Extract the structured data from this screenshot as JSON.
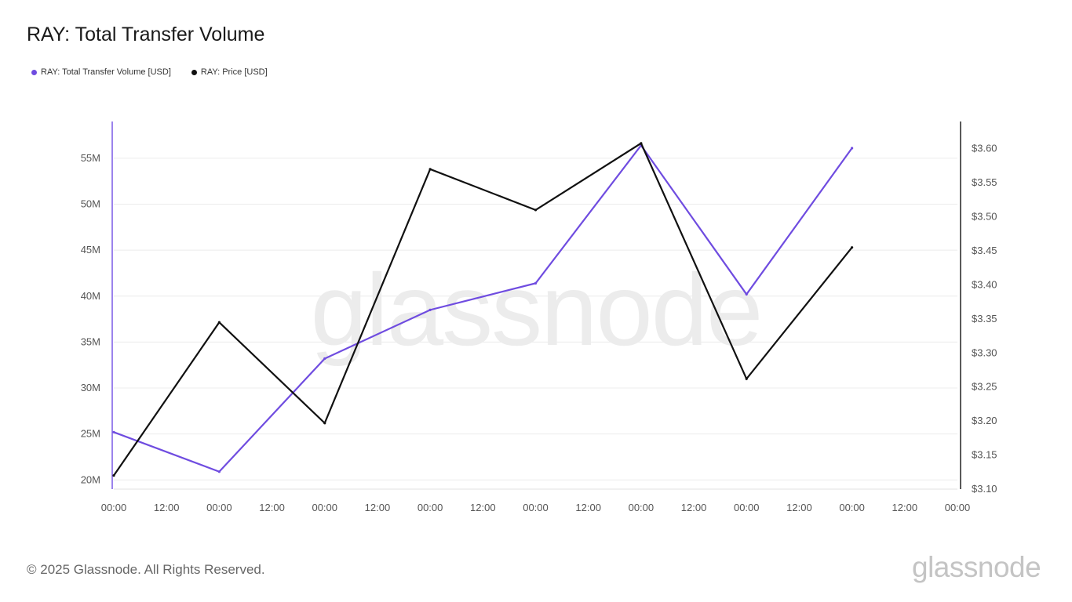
{
  "header": {
    "title": "RAY: Total Transfer Volume"
  },
  "footer": {
    "copyright": "© 2025 Glassnode. All Rights Reserved.",
    "brand": "glassnode"
  },
  "watermark": "glassnode",
  "colors": {
    "volume": "#6f4ce0",
    "price": "#111111",
    "axis_left": "#7a5ae6",
    "grid": "#ececec"
  },
  "chart_data": {
    "type": "line",
    "title": "RAY: Total Transfer Volume",
    "legend_placement": "top-left",
    "grid": true,
    "x_tick_labels": [
      "00:00",
      "12:00",
      "00:00",
      "12:00",
      "00:00",
      "12:00",
      "00:00",
      "12:00",
      "00:00",
      "12:00",
      "00:00",
      "12:00",
      "00:00",
      "12:00",
      "00:00",
      "12:00",
      "00:00"
    ],
    "x_range_half_days": [
      0,
      16
    ],
    "y_left": {
      "ticks": [
        "20M",
        "25M",
        "30M",
        "35M",
        "40M",
        "45M",
        "50M",
        "55M"
      ],
      "tick_values": [
        20,
        25,
        30,
        35,
        40,
        45,
        50,
        55
      ],
      "unit": "M",
      "range": [
        19,
        59
      ]
    },
    "y_right": {
      "ticks": [
        "$3.10",
        "$3.15",
        "$3.20",
        "$3.25",
        "$3.30",
        "$3.35",
        "$3.40",
        "$3.45",
        "$3.50",
        "$3.55",
        "$3.60"
      ],
      "tick_values": [
        3.1,
        3.15,
        3.2,
        3.25,
        3.3,
        3.35,
        3.4,
        3.45,
        3.5,
        3.55,
        3.6
      ],
      "range": [
        3.1,
        3.64
      ]
    },
    "series": [
      {
        "name": "RAY: Total Transfer Volume [USD]",
        "axis": "left",
        "x": [
          0,
          2,
          4,
          6,
          8,
          10,
          12,
          14
        ],
        "values": [
          25.2,
          20.9,
          33.2,
          38.5,
          41.4,
          56.4,
          40.2,
          56.1
        ]
      },
      {
        "name": "RAY: Price [USD]",
        "axis": "right",
        "x": [
          0,
          2,
          4,
          6,
          8,
          10,
          12,
          14
        ],
        "values": [
          3.12,
          3.345,
          3.197,
          3.57,
          3.51,
          3.608,
          3.262,
          3.455
        ]
      }
    ]
  }
}
